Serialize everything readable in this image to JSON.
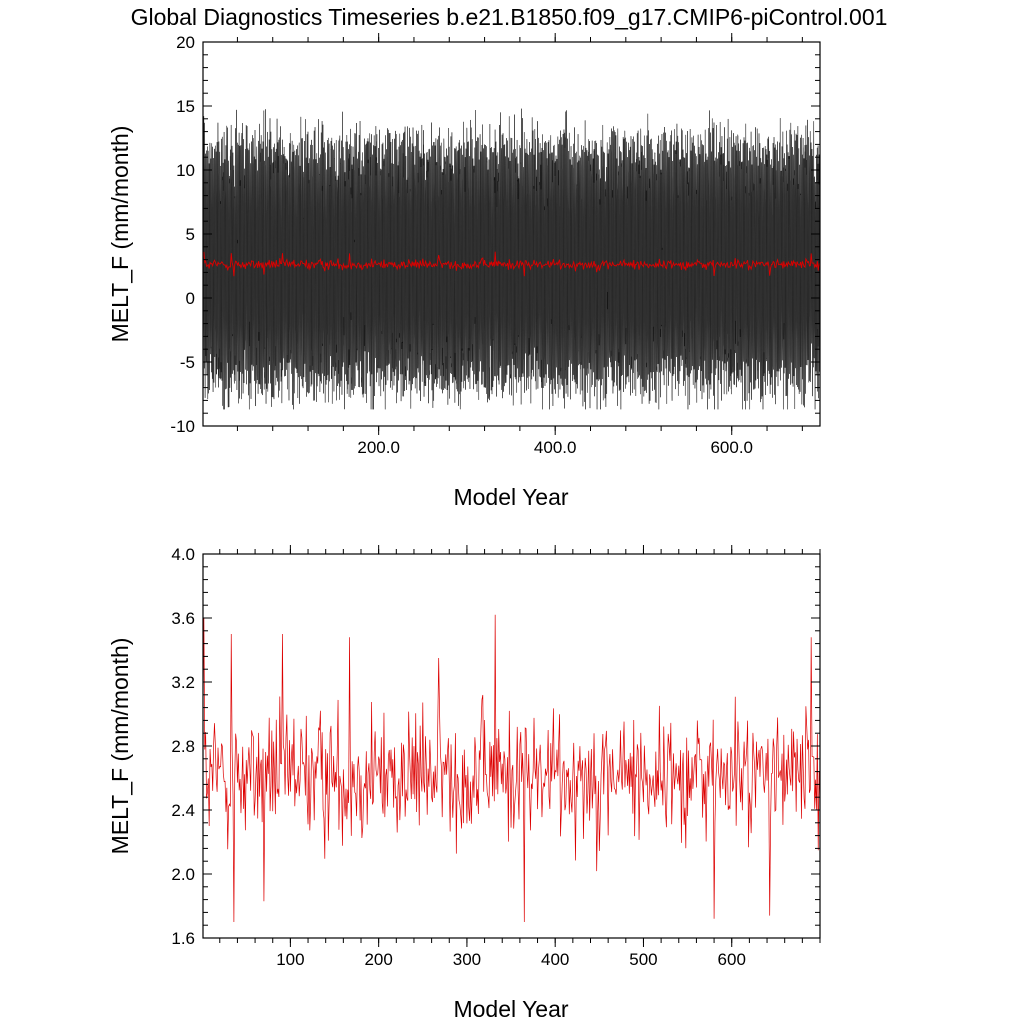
{
  "title": "Global Diagnostics Timeseries b.e21.B1850.f09_g17.CMIP6-piControl.001",
  "chart_data": [
    {
      "type": "line",
      "ylabel": "MELT_F (mm/month)",
      "xlabel": "Model Year",
      "xlim": [
        1,
        700
      ],
      "ylim": [
        -10,
        20
      ],
      "x_ticks": [
        200,
        400,
        600
      ],
      "x_tick_labels": [
        "200.0",
        "400.0",
        "600.0"
      ],
      "y_ticks": [
        -10,
        -5,
        0,
        5,
        10,
        15,
        20
      ],
      "y_tick_labels": [
        "-10",
        "-5",
        "0",
        "5",
        "10",
        "15",
        "20"
      ],
      "grid": false,
      "legend": "none",
      "series": [
        {
          "kind": "monthly",
          "color": "#000000",
          "band_color": "#6e6e6e",
          "months_per_year": 12,
          "values_estimated": "monthly MELT_F, typical range -8 to 16, annual cycle",
          "mean": 2.6,
          "amplitude": 9.5,
          "noise": 2.5
        },
        {
          "kind": "annual",
          "color": "#dd0000",
          "source": "same annual mean series as lower panel"
        }
      ]
    },
    {
      "type": "line",
      "ylabel": "MELT_F (mm/month)",
      "xlabel": "Model Year",
      "xlim": [
        1,
        700
      ],
      "ylim": [
        1.6,
        4.0
      ],
      "x_ticks": [
        100,
        200,
        300,
        400,
        500,
        600
      ],
      "x_tick_labels": [
        "100",
        "200",
        "300",
        "400",
        "500",
        "600"
      ],
      "y_ticks": [
        1.6,
        2.0,
        2.4,
        2.8,
        3.2,
        3.6,
        4.0
      ],
      "y_tick_labels": [
        "1.6",
        "2.0",
        "2.4",
        "2.8",
        "3.2",
        "3.6",
        "4.0"
      ],
      "grid": false,
      "legend": "none",
      "series": [
        {
          "kind": "annual",
          "color": "#dd0000",
          "mean": 2.62,
          "std": 0.3,
          "min": 1.7,
          "max": 3.62,
          "key_points": [
            [
              1,
              3.0
            ],
            [
              2,
              3.6
            ],
            [
              8,
              2.3
            ],
            [
              33,
              3.5
            ],
            [
              36,
              1.7
            ],
            [
              70,
              1.83
            ],
            [
              91,
              3.5
            ],
            [
              167,
              3.48
            ],
            [
              268,
              3.35
            ],
            [
              332,
              3.62
            ],
            [
              365,
              1.7
            ],
            [
              580,
              1.72
            ],
            [
              643,
              1.74
            ],
            [
              690,
              3.48
            ]
          ]
        }
      ]
    }
  ]
}
